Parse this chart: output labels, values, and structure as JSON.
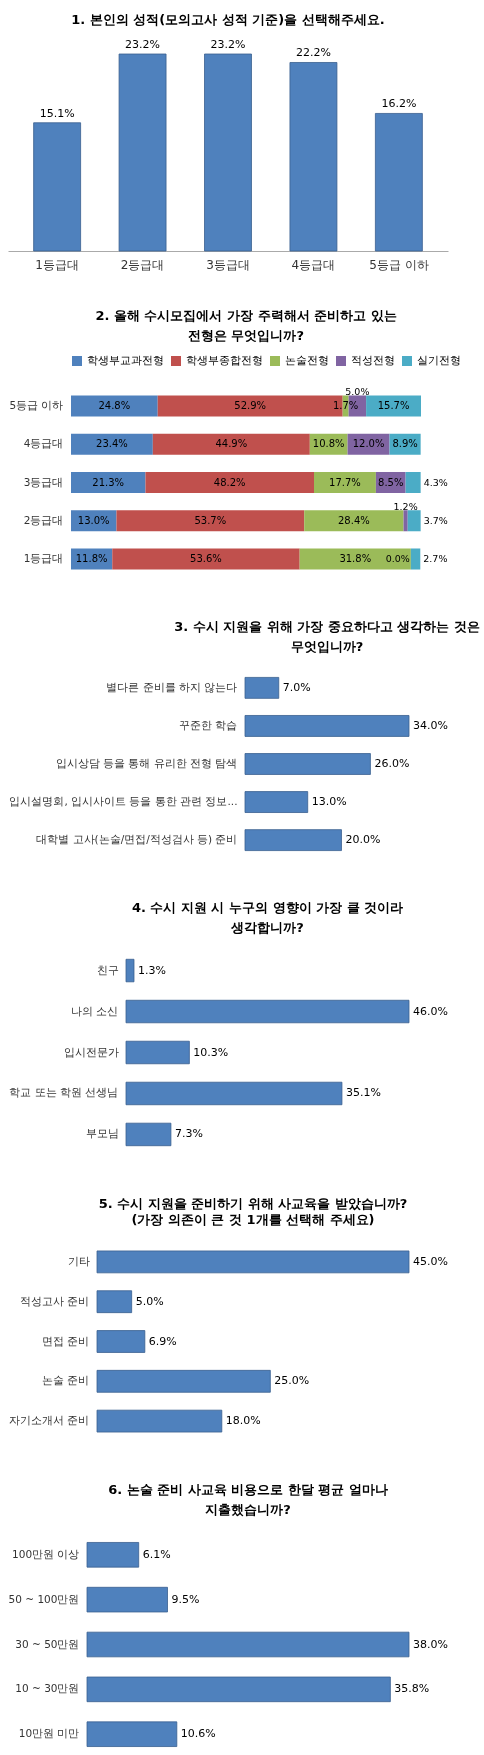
{
  "chart_data": [
    {
      "type": "bar",
      "title": "1. 본인의 성적(모의고사 성적 기준)을 선택해주세요.",
      "categories": [
        "1등급대",
        "2등급대",
        "3등급대",
        "4등급대",
        "5등급 이하"
      ],
      "values": [
        15.1,
        23.2,
        23.2,
        22.2,
        16.2
      ],
      "value_labels": [
        "15.1%",
        "23.2%",
        "23.2%",
        "22.2%",
        "16.2%"
      ],
      "color": "#4f81bd",
      "tick_labels": "x"
    },
    {
      "type": "bar",
      "title": "2. 올해 수시모집에서 가장 주력해서 준비하고 있는\n전형은 무엇입니까?",
      "orientation": "horizontal",
      "stacked": true,
      "legend": "top",
      "tick_labels": "y",
      "categories": [
        "5등급 이하",
        "4등급대",
        "3등급대",
        "2등급대",
        "1등급대"
      ],
      "series": [
        {
          "name": "학생부교과전형",
          "color": "#4f81bd",
          "values": [
            24.8,
            23.4,
            21.3,
            13.0,
            11.8
          ],
          "value_labels": [
            "24.8%",
            "23.4%",
            "21.3%",
            "13.0%",
            "11.8%"
          ]
        },
        {
          "name": "학생부종합전형",
          "color": "#c0504d",
          "values": [
            52.9,
            44.9,
            48.2,
            53.7,
            53.6
          ],
          "value_labels": [
            "52.9%",
            "44.9%",
            "48.2%",
            "53.7%",
            "53.6%"
          ]
        },
        {
          "name": "논술전형",
          "color": "#9bbb59",
          "values": [
            1.7,
            10.8,
            17.7,
            28.4,
            31.8
          ],
          "value_labels": [
            "1.7%",
            "10.8%",
            "17.7%",
            "28.4%",
            "31.8%"
          ]
        },
        {
          "name": "적성전형",
          "color": "#8064a2",
          "values": [
            5.0,
            12.0,
            8.5,
            1.2,
            0.0
          ],
          "value_labels": [
            "5.0%",
            "12.0%",
            "8.5%",
            "1.2%",
            "0.0%"
          ]
        },
        {
          "name": "실기전형",
          "color": "#4bacc6",
          "values": [
            15.7,
            8.9,
            4.3,
            3.7,
            2.7
          ],
          "value_labels": [
            "15.7%",
            "8.9%",
            "4.3%",
            "3.7%",
            "2.7%"
          ]
        }
      ]
    },
    {
      "type": "bar",
      "title": "3. 수시 지원을 위해 가장 중요하다고 생각하는 것은\n무엇입니까?",
      "orientation": "horizontal",
      "tick_labels": "y",
      "categories": [
        "별다른 준비를 하지 않는다",
        "꾸준한 학습",
        "입시상담 등을 통해 유리한 전형 탐색",
        "입시설명회, 입시사이트 등을 통한 관련 정보...",
        "대학별 고사(논술/면접/적성검사 등) 준비"
      ],
      "values": [
        7.0,
        34.0,
        26.0,
        13.0,
        20.0
      ],
      "value_labels": [
        "7.0%",
        "34.0%",
        "26.0%",
        "13.0%",
        "20.0%"
      ],
      "color": "#4f81bd"
    },
    {
      "type": "bar",
      "title": "4. 수시 지원 시 누구의 영향이 가장 클 것이라\n생각합니까?",
      "orientation": "horizontal",
      "tick_labels": "y",
      "categories": [
        "친구",
        "나의 소신",
        "입시전문가",
        "학교 또는 학원 선생님",
        "부모님"
      ],
      "values": [
        1.3,
        46.0,
        10.3,
        35.1,
        7.3
      ],
      "value_labels": [
        "1.3%",
        "46.0%",
        "10.3%",
        "35.1%",
        "7.3%"
      ],
      "color": "#4f81bd"
    },
    {
      "type": "bar",
      "title": "5. 수시 지원을 준비하기 위해 사교육을 받았습니까?",
      "subtitle": "(가장 의존이 큰 것 1개를 선택해 주세요)",
      "orientation": "horizontal",
      "tick_labels": "y",
      "categories": [
        "기타",
        "적성고사 준비",
        "면접 준비",
        "논술 준비",
        "자기소개서 준비"
      ],
      "values": [
        45.0,
        5.0,
        6.9,
        25.0,
        18.0
      ],
      "value_labels": [
        "45.0%",
        "5.0%",
        "6.9%",
        "25.0%",
        "18.0%"
      ],
      "color": "#4f81bd"
    },
    {
      "type": "bar",
      "title": "6. 논술 준비 사교육 비용으로 한달 평균 얼마나\n지출했습니까?",
      "orientation": "horizontal",
      "tick_labels": "y",
      "categories": [
        "100만원 이상",
        "50 ~ 100만원",
        "30 ~ 50만원",
        "10 ~ 30만원",
        "10만원 미만"
      ],
      "values": [
        6.1,
        9.5,
        38.0,
        35.8,
        10.6
      ],
      "value_labels": [
        "6.1%",
        "9.5%",
        "38.0%",
        "35.8%",
        "10.6%"
      ],
      "color": "#4f81bd"
    }
  ]
}
